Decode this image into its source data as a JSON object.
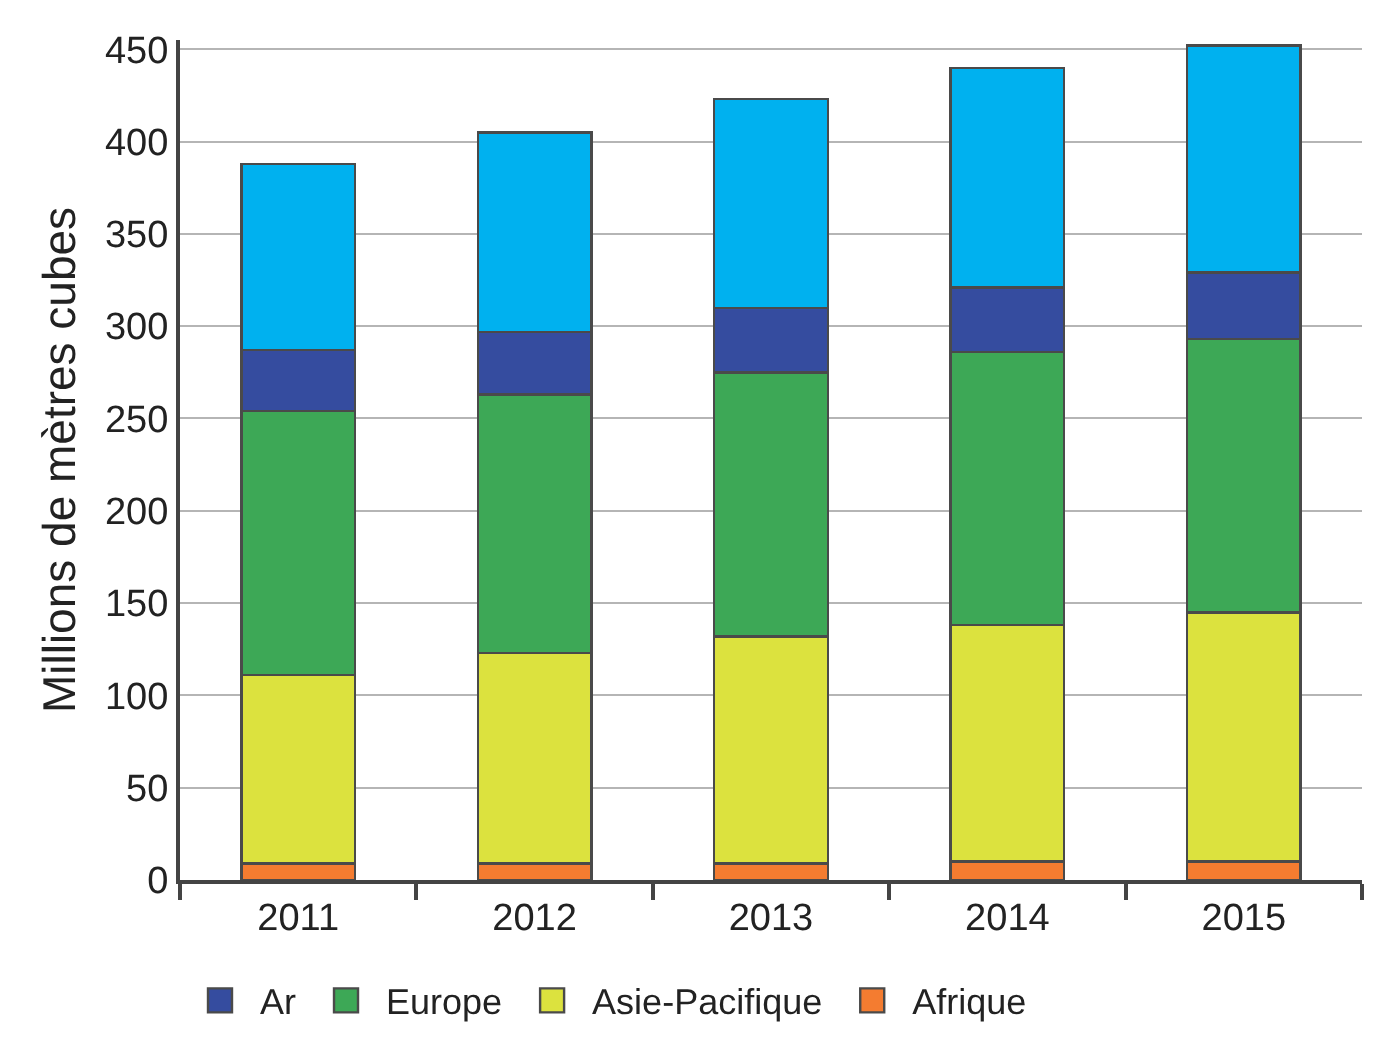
{
  "chart_data": {
    "type": "bar",
    "stacked": true,
    "ylabel": "Millions de mètres cubes",
    "categories": [
      "2011",
      "2012",
      "2013",
      "2014",
      "2015"
    ],
    "series": [
      {
        "name": "Afrique",
        "color": "#f47c30",
        "values": [
          9,
          9,
          9,
          10,
          10
        ]
      },
      {
        "name": "Asie-Pacifique",
        "color": "#dce23e",
        "values": [
          102,
          114,
          123,
          128,
          135
        ]
      },
      {
        "name": "Europe",
        "color": "#3da856",
        "values": [
          143,
          140,
          143,
          148,
          148
        ]
      },
      {
        "name": "Ar",
        "color": "#354c9f",
        "values": [
          33,
          34,
          35,
          35,
          36
        ]
      },
      {
        "color": "#00b1ef",
        "values": [
          101,
          108,
          113,
          119,
          123
        ]
      }
    ],
    "ylim": [
      0,
      455
    ],
    "yticks": [
      0,
      50,
      100,
      150,
      200,
      250,
      300,
      350,
      400,
      450
    ],
    "grid": "y",
    "legend": "bottom"
  }
}
